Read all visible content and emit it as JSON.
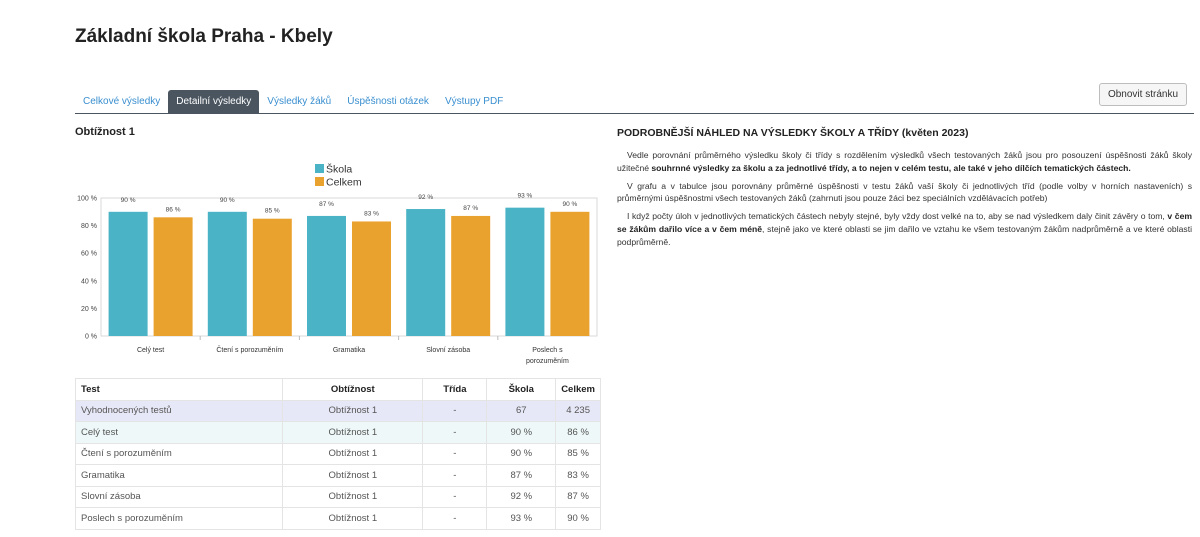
{
  "page_title": "Základní škola Praha - Kbely",
  "tabs": [
    {
      "label": "Celkové výsledky"
    },
    {
      "label": "Detailní výsledky"
    },
    {
      "label": "Výsledky žáků"
    },
    {
      "label": "Úspěšnosti otázek"
    },
    {
      "label": "Výstupy PDF"
    }
  ],
  "active_tab": "Detailní výsledky",
  "refresh_label": "Obnovit stránku",
  "section_title": "Obtížnost 1",
  "colors": {
    "skola": "#4ab3c5",
    "celkem": "#e9a22d",
    "active_tab": "#4a5560",
    "link": "#3a8fd0"
  },
  "chart_data": {
    "type": "bar",
    "categories": [
      "Celý test",
      "Čtení s porozuměním",
      "Gramatika",
      "Slovní zásoba",
      "Poslech s porozuměním"
    ],
    "category_lines": [
      [
        "Celý test"
      ],
      [
        "Čtení s porozuměním"
      ],
      [
        "Gramatika"
      ],
      [
        "Slovní zásoba"
      ],
      [
        "Poslech s",
        "porozuměním"
      ]
    ],
    "series": [
      {
        "name": "Škola",
        "values": [
          90,
          90,
          87,
          92,
          93
        ]
      },
      {
        "name": "Celkem",
        "values": [
          86,
          85,
          83,
          87,
          90
        ]
      }
    ],
    "value_suffix": " %",
    "ylim": [
      0,
      100
    ],
    "yticks": [
      "0 %",
      "20 %",
      "40 %",
      "60 %",
      "80 %",
      "100 %"
    ],
    "legend_position": "top",
    "grid": false
  },
  "table": {
    "headers": [
      "Test",
      "Obtížnost",
      "Třída",
      "Škola",
      "Celkem"
    ],
    "rows": [
      [
        "Vyhodnocených testů",
        "Obtížnost 1",
        "-",
        "67",
        "4 235"
      ],
      [
        "Celý test",
        "Obtížnost 1",
        "-",
        "90 %",
        "86 %"
      ],
      [
        "Čtení s porozuměním",
        "Obtížnost 1",
        "-",
        "90 %",
        "85 %"
      ],
      [
        "Gramatika",
        "Obtížnost 1",
        "-",
        "87 %",
        "83 %"
      ],
      [
        "Slovní zásoba",
        "Obtížnost 1",
        "-",
        "92 %",
        "87 %"
      ],
      [
        "Poslech s porozuměním",
        "Obtížnost 1",
        "-",
        "93 %",
        "90 %"
      ]
    ]
  },
  "right": {
    "heading": "PODROBNĚJŠÍ NÁHLED NA VÝSLEDKY ŠKOLY A TŘÍDY (květen 2023)",
    "p1_a": "Vedle porovnání průměrného výsledku školy či třídy s rozdělením výsledků všech testovaných žáků jsou pro posouzení úspěšnosti žáků školy užitečné ",
    "p1_b": "souhrnné výsledky za školu a za jednotlivé třídy, a to nejen v celém testu, ale také v jeho dílčích tematických částech.",
    "p2": "V grafu a v tabulce jsou porovnány průměrné úspěšnosti v testu žáků vaší školy či jednotlivých tříd (podle volby v horních nastaveních) s průměrnými úspěšnostmi všech testovaných žáků (zahrnuti jsou pouze žáci bez speciálních vzdělávacích potřeb)",
    "p3_a": "I když počty úloh v jednotlivých tematických částech nebyly stejné, byly vždy dost velké na to, aby se nad výsledkem daly činit závěry o tom, ",
    "p3_b": "v čem se žákům dařilo více a v čem méně",
    "p3_c": ", stejně jako ve které oblasti se jim dařilo ve vztahu ke všem testovaným žákům nadprůměrně a ve které oblasti podprůměrně."
  }
}
